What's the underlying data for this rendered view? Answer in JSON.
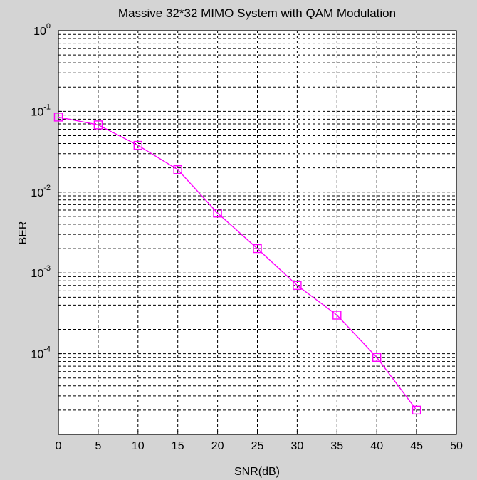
{
  "chart_data": {
    "type": "line",
    "title": "Massive 32*32 MIMO System with QAM Modulation",
    "xlabel": "SNR(dB)",
    "ylabel": "BER",
    "xlim": [
      0,
      50
    ],
    "ylim": [
      1e-05,
      1
    ],
    "y_scale": "log",
    "x_ticks": [
      0,
      5,
      10,
      15,
      20,
      25,
      30,
      35,
      40,
      45,
      50
    ],
    "y_ticks": [
      {
        "base": "10",
        "exp": "0"
      },
      {
        "base": "10",
        "exp": "-1"
      },
      {
        "base": "10",
        "exp": "-2"
      },
      {
        "base": "10",
        "exp": "-3"
      },
      {
        "base": "10",
        "exp": "-4"
      }
    ],
    "grid": true,
    "series": [
      {
        "color": "#ff00ff",
        "marker": "square",
        "x": [
          0,
          5,
          10,
          15,
          20,
          25,
          30,
          35,
          40,
          45
        ],
        "y": [
          0.085,
          0.068,
          0.038,
          0.019,
          0.0055,
          0.002,
          0.0007,
          0.0003,
          9e-05,
          2e-05
        ]
      }
    ]
  },
  "colors": {
    "figure_background": "#d4d4d4",
    "axes_background": "#ffffff",
    "line": "#ff00ff"
  }
}
